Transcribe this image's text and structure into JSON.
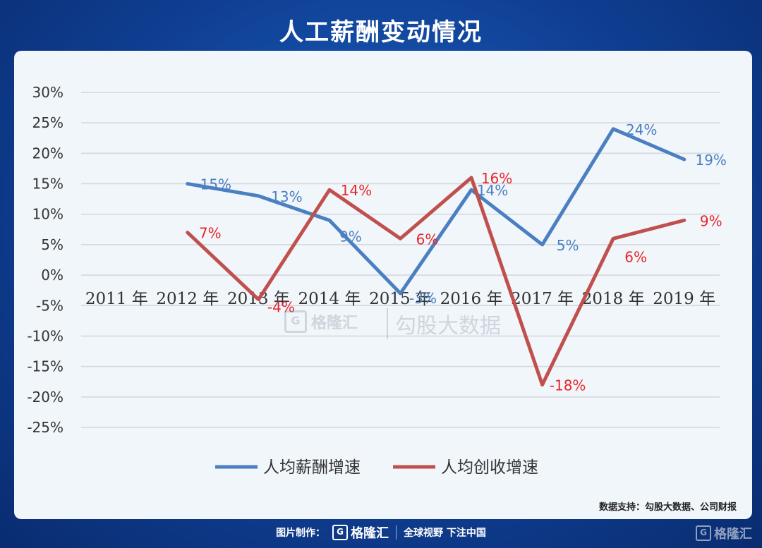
{
  "title": "人工薪酬变动情况",
  "watermark": {
    "logo_text": "格隆汇",
    "text": "勾股大数据"
  },
  "source": "数据支持：勾股大数据、公司财报",
  "footer": {
    "made_by": "图片制作：",
    "logo_text": "格隆汇",
    "slogan": "全球视野 下注中国"
  },
  "corner_logo": "格隆汇",
  "colors": {
    "series1": "#4a7fc1",
    "series2": "#c0504d",
    "label1": "#4a7fc1",
    "label2": "#e8262b",
    "grid": "#d3d7dc"
  },
  "chart_data": {
    "type": "line",
    "categories": [
      "2011 年",
      "2012 年",
      "2013 年",
      "2014 年",
      "2015 年",
      "2016 年",
      "2017 年",
      "2018 年",
      "2019 年"
    ],
    "ylim": [
      -25,
      30
    ],
    "yticks": [
      "30%",
      "25%",
      "20%",
      "15%",
      "10%",
      "5%",
      "0%",
      "-5%",
      "-10%",
      "-15%",
      "-20%",
      "-25%"
    ],
    "legend_position": "bottom",
    "series": [
      {
        "name": "人均薪酬增速",
        "values": [
          null,
          15,
          13,
          9,
          -3,
          14,
          5,
          24,
          19
        ],
        "labels": [
          "",
          "15%",
          "13%",
          "9%",
          "-3%",
          "14%",
          "5%",
          "24%",
          "19%"
        ]
      },
      {
        "name": "人均创收增速",
        "values": [
          null,
          7,
          -4,
          14,
          6,
          16,
          -18,
          6,
          9
        ],
        "labels": [
          "",
          "7%",
          "-4%",
          "14%",
          "6%",
          "16%",
          "-18%",
          "6%",
          "9%"
        ]
      }
    ]
  }
}
